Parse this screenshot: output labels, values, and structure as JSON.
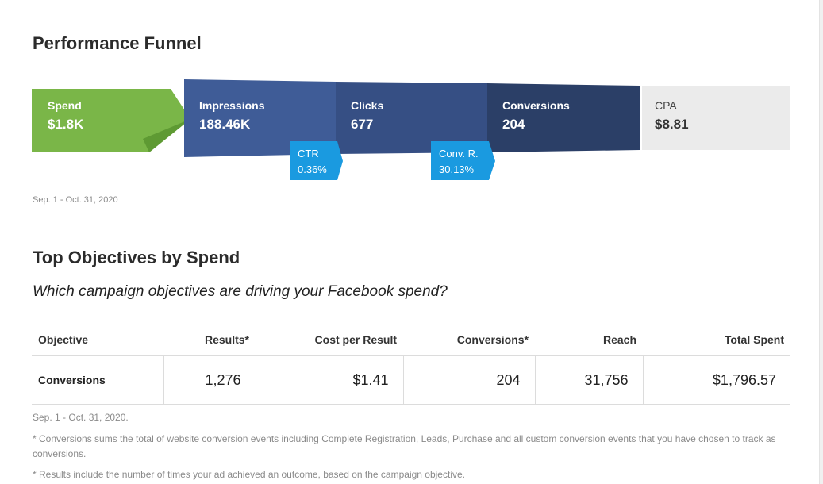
{
  "funnel": {
    "title": "Performance Funnel",
    "spend": {
      "label": "Spend",
      "value": "$1.8K"
    },
    "impressions": {
      "label": "Impressions",
      "value": "188.46K"
    },
    "clicks": {
      "label": "Clicks",
      "value": "677"
    },
    "conversions": {
      "label": "Conversions",
      "value": "204"
    },
    "cpa": {
      "label": "CPA",
      "value": "$8.81"
    },
    "ctr": {
      "label": "CTR",
      "value": "0.36%"
    },
    "conv_rate": {
      "label": "Conv. R.",
      "value": "30.13%"
    },
    "date_range": "Sep. 1 - Oct. 31, 2020",
    "colors": {
      "spend": "#7ab648",
      "impressions": "#3f5c97",
      "clicks": "#364f84",
      "conversions": "#2b3f67",
      "cpa_bg": "#ebebeb",
      "badge": "#1a9ae0"
    }
  },
  "objectives": {
    "title": "Top Objectives by Spend",
    "subtitle": "Which campaign objectives are driving your Facebook spend?",
    "columns": [
      "Objective",
      "Results*",
      "Cost per Result",
      "Conversions*",
      "Reach",
      "Total Spent"
    ],
    "rows": [
      [
        "Conversions",
        "1,276",
        "$1.41",
        "204",
        "31,756",
        "$1,796.57"
      ]
    ],
    "date_note": "Sep. 1 - Oct. 31, 2020.",
    "footnote_conversions": "* Conversions sums the total of website conversion events including Complete Registration, Leads, Purchase and all custom conversion events that you have chosen to track as conversions.",
    "footnote_results": "* Results include the number of times your ad achieved an outcome, based on the campaign objective."
  }
}
